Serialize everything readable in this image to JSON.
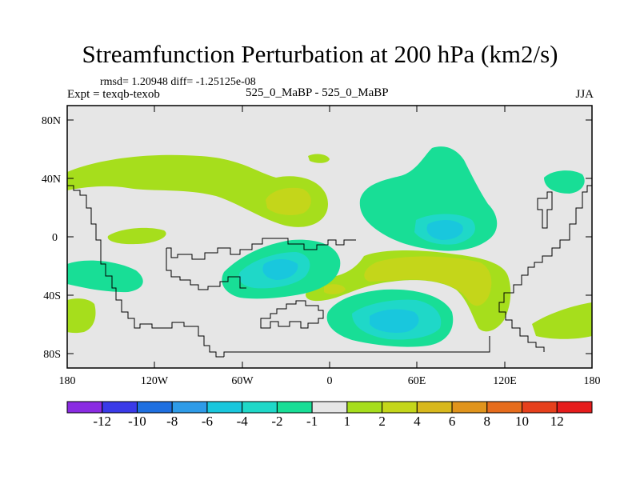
{
  "title": "Streamfunction Perturbation at 200 hPa (km2/s)",
  "stats_text": "rmsd= 1.20948 diff= -1.25125e-08",
  "left_label": "Expt = texqb-texob",
  "center_label": "525_0_MaBP - 525_0_MaBP",
  "right_label": "JJA",
  "lat_labels": [
    "80N",
    "40N",
    "0",
    "40S",
    "80S"
  ],
  "lon_labels": [
    "180",
    "120W",
    "60W",
    "0",
    "60E",
    "120E",
    "180"
  ],
  "colorbar": {
    "labels": [
      "-12",
      "-10",
      "-8",
      "-6",
      "-4",
      "-2",
      "-1",
      "1",
      "2",
      "4",
      "6",
      "8",
      "10",
      "12"
    ],
    "colors": [
      "#8A2BE2",
      "#3A3AE8",
      "#1E6FE0",
      "#2E9BE8",
      "#19C7DD",
      "#1FD8C8",
      "#18DE96",
      "#E6E6E6",
      "#A6DE1C",
      "#C4D61A",
      "#D8B81C",
      "#E0941C",
      "#E66C1C",
      "#E6401C",
      "#E61C1C"
    ]
  },
  "colors": {
    "background_field": "#E6E6E6",
    "pos_1_2": "#A6DE1C",
    "pos_2_4": "#C4D61A",
    "neg_1_2": "#18DE96",
    "neg_2_4": "#1FD8C8",
    "neg_4_6": "#19C7DD"
  }
}
